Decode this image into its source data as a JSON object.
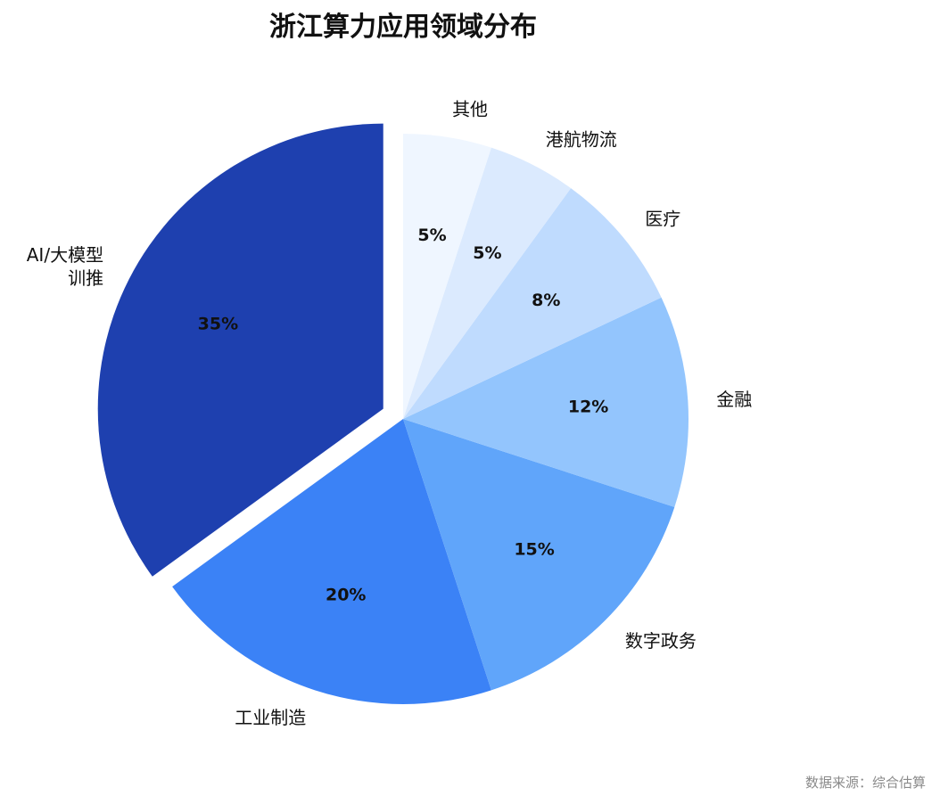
{
  "chart_data": {
    "type": "pie",
    "title": "浙江算力应用领域分布",
    "labels": [
      "AI/大模型训推",
      "工业制造",
      "数字政务",
      "金融",
      "医疗",
      "港航物流",
      "其他"
    ],
    "label_lines": [
      [
        "AI/大模型",
        "训推"
      ],
      [
        "工业制造"
      ],
      [
        "数字政务"
      ],
      [
        "金融"
      ],
      [
        "医疗"
      ],
      [
        "港航物流"
      ],
      [
        "其他"
      ]
    ],
    "values": [
      35,
      20,
      15,
      12,
      8,
      5,
      5
    ],
    "value_labels": [
      "35%",
      "20%",
      "15%",
      "12%",
      "8%",
      "5%",
      "5%"
    ],
    "colors": [
      "#1e40af",
      "#3b82f6",
      "#60a5fa",
      "#93c5fd",
      "#bfdbfe",
      "#dbeafe",
      "#eff6ff"
    ],
    "exploded": "AI/大模型训推",
    "start": "top",
    "direction": "counterclockwise"
  },
  "source_note": "数据来源：综合估算"
}
